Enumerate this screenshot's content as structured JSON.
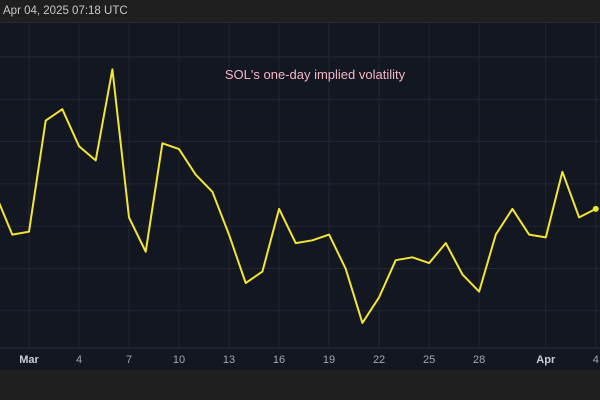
{
  "header": {
    "timestamp": "Apr 04, 2025 07:18 UTC"
  },
  "colors": {
    "line": "#f3e532",
    "title": "#f4b6c2",
    "bg": "#131722",
    "grid": "#232733"
  },
  "chart_data": {
    "type": "line",
    "title": "SOL's one-day implied volatility",
    "xlabel": "",
    "ylabel": "",
    "x": [
      "Feb 27",
      "Feb 28",
      "Mar 1",
      "Mar 2",
      "Mar 3",
      "Mar 4",
      "Mar 5",
      "Mar 6",
      "Mar 7",
      "Mar 8",
      "Mar 9",
      "Mar 10",
      "Mar 11",
      "Mar 12",
      "Mar 13",
      "Mar 14",
      "Mar 15",
      "Mar 16",
      "Mar 17",
      "Mar 18",
      "Mar 19",
      "Mar 20",
      "Mar 21",
      "Mar 22",
      "Mar 23",
      "Mar 24",
      "Mar 25",
      "Mar 26",
      "Mar 27",
      "Mar 28",
      "Mar 29",
      "Mar 30",
      "Mar 31",
      "Apr 1",
      "Apr 2",
      "Apr 3",
      "Apr 4"
    ],
    "values": [
      51,
      37,
      38,
      77,
      81,
      68,
      63,
      95,
      43,
      31,
      69,
      67,
      58,
      52,
      37,
      20,
      24,
      46,
      34,
      35,
      37,
      25,
      6,
      15,
      28,
      29,
      27,
      34,
      23,
      17,
      37,
      46,
      37,
      36,
      59,
      43,
      46
    ],
    "ylim": [
      0,
      100
    ],
    "xticks": [
      {
        "label": "Mar",
        "index": 2
      },
      {
        "label": "4",
        "index": 5
      },
      {
        "label": "7",
        "index": 8
      },
      {
        "label": "10",
        "index": 11
      },
      {
        "label": "13",
        "index": 14
      },
      {
        "label": "16",
        "index": 17
      },
      {
        "label": "19",
        "index": 20
      },
      {
        "label": "22",
        "index": 23
      },
      {
        "label": "25",
        "index": 26
      },
      {
        "label": "28",
        "index": 29
      },
      {
        "label": "Apr",
        "index": 33
      },
      {
        "label": "4",
        "index": 36
      }
    ],
    "grid": true
  }
}
